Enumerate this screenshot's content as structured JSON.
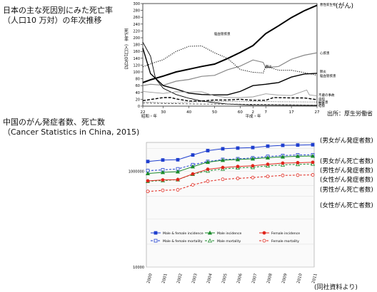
{
  "headings": {
    "japan_title_line1": "日本の主な死因別にみた死亡率",
    "japan_title_line2": "（人口10 万対）の年次推移",
    "japan_source": "出所：厚生労働省",
    "china_title_line1": "中国のがん発症者数、死亡数",
    "china_title_line2": "（Cancer Statistics in China, 2015)",
    "footer_note": "(同社資料より)"
  },
  "chart_data": [
    {
      "type": "line",
      "title": "日本の主な死因別にみた死亡率（人口10 万対）の年次推移",
      "ylabel": "死亡率（人口10万対）",
      "ylim": [
        0,
        300
      ],
      "y_ticks": [
        0,
        20,
        40,
        60,
        80,
        100,
        120,
        140,
        160,
        180,
        200,
        220,
        240,
        260,
        280,
        300
      ],
      "x_tick_labels": [
        "22",
        "30",
        "40",
        "50",
        "60",
        "2",
        "7",
        "17",
        "27"
      ],
      "x_era_labels": [
        "昭和・年",
        "平成・年"
      ],
      "xlim": [
        1947,
        2015
      ],
      "grid": false,
      "series": [
        {
          "name": "悪性新生物",
          "style": "solid-thick",
          "points": [
            [
              1947,
              69
            ],
            [
              1950,
              77
            ],
            [
              1955,
              88
            ],
            [
              1960,
              100
            ],
            [
              1965,
              108
            ],
            [
              1970,
              116
            ],
            [
              1975,
              123
            ],
            [
              1980,
              139
            ],
            [
              1985,
              157
            ],
            [
              1990,
              177
            ],
            [
              1995,
              212
            ],
            [
              2000,
              235
            ],
            [
              2005,
              259
            ],
            [
              2010,
              279
            ],
            [
              2015,
              295
            ]
          ]
        },
        {
          "name": "心疾患",
          "style": "solid-gray",
          "points": [
            [
              1947,
              60
            ],
            [
              1950,
              64
            ],
            [
              1955,
              61
            ],
            [
              1960,
              73
            ],
            [
              1965,
              78
            ],
            [
              1970,
              87
            ],
            [
              1975,
              90
            ],
            [
              1980,
              106
            ],
            [
              1985,
              117
            ],
            [
              1990,
              135
            ],
            [
              1994,
              128
            ],
            [
              1995,
              112
            ],
            [
              2000,
              116
            ],
            [
              2005,
              137
            ],
            [
              2010,
              149
            ],
            [
              2015,
              156
            ]
          ]
        },
        {
          "name": "脳血管疾患",
          "style": "dotted",
          "points": [
            [
              1947,
              115
            ],
            [
              1951,
              126
            ],
            [
              1955,
              136
            ],
            [
              1960,
              160
            ],
            [
              1965,
              175
            ],
            [
              1970,
              176
            ],
            [
              1975,
              156
            ],
            [
              1980,
              140
            ],
            [
              1985,
              107
            ],
            [
              1990,
              99
            ],
            [
              1994,
              97
            ],
            [
              1995,
              117
            ],
            [
              2000,
              105
            ],
            [
              2005,
              105
            ],
            [
              2010,
              98
            ],
            [
              2015,
              90
            ]
          ]
        },
        {
          "name": "肺炎",
          "style": "solid-black",
          "points": [
            [
              1947,
              170
            ],
            [
              1950,
              95
            ],
            [
              1955,
              60
            ],
            [
              1960,
              50
            ],
            [
              1965,
              38
            ],
            [
              1970,
              34
            ],
            [
              1975,
              33
            ],
            [
              1980,
              33
            ],
            [
              1985,
              43
            ],
            [
              1990,
              60
            ],
            [
              1995,
              64
            ],
            [
              2000,
              69
            ],
            [
              2005,
              85
            ],
            [
              2010,
              94
            ],
            [
              2015,
              96
            ]
          ]
        },
        {
          "name": "結核",
          "style": "solid-black-thin",
          "points": [
            [
              1947,
              187
            ],
            [
              1950,
              146
            ],
            [
              1952,
              80
            ],
            [
              1955,
              52
            ],
            [
              1960,
              34
            ],
            [
              1965,
              23
            ],
            [
              1970,
              15
            ],
            [
              1975,
              10
            ],
            [
              1980,
              6
            ],
            [
              1990,
              3
            ],
            [
              2015,
              2
            ]
          ]
        },
        {
          "name": "不慮の事故",
          "style": "solid-gray-thin",
          "points": [
            [
              1947,
              43
            ],
            [
              1955,
              37
            ],
            [
              1960,
              42
            ],
            [
              1965,
              41
            ],
            [
              1970,
              42
            ],
            [
              1975,
              30
            ],
            [
              1980,
              25
            ],
            [
              1985,
              25
            ],
            [
              1990,
              27
            ],
            [
              1995,
              36
            ],
            [
              2000,
              32
            ],
            [
              2005,
              31
            ],
            [
              2011,
              47
            ],
            [
              2012,
              33
            ],
            [
              2015,
              30
            ]
          ]
        },
        {
          "name": "自殺",
          "style": "dashed",
          "points": [
            [
              1947,
              16
            ],
            [
              1955,
              25
            ],
            [
              1958,
              25
            ],
            [
              1960,
              21
            ],
            [
              1965,
              15
            ],
            [
              1970,
              15
            ],
            [
              1975,
              18
            ],
            [
              1980,
              18
            ],
            [
              1985,
              20
            ],
            [
              1990,
              17
            ],
            [
              1995,
              17
            ],
            [
              1998,
              25
            ],
            [
              2005,
              24
            ],
            [
              2010,
              24
            ],
            [
              2015,
              19
            ]
          ]
        },
        {
          "name": "肝疾患",
          "style": "dotted-thin",
          "points": [
            [
              1947,
              12
            ],
            [
              1955,
              10
            ],
            [
              1960,
              10
            ],
            [
              1965,
              12
            ],
            [
              1970,
              13
            ],
            [
              1975,
              14
            ],
            [
              1980,
              14
            ],
            [
              1990,
              14
            ],
            [
              2000,
              13
            ],
            [
              2015,
              12
            ]
          ]
        },
        {
          "name": "腎炎",
          "style": "dashed-thin",
          "points": [
            [
              1947,
              9
            ],
            [
              1955,
              8
            ],
            [
              1960,
              7
            ],
            [
              1970,
              6
            ],
            [
              1980,
              6
            ],
            [
              1990,
              5
            ],
            [
              2015,
              3
            ]
          ]
        }
      ],
      "annotations": [
        "(がん)"
      ]
    },
    {
      "type": "line",
      "title": "中国のがん発症者数、死亡数（Cancer Statistics in China, 2015)",
      "x": [
        "2000",
        "2001",
        "2002",
        "2003",
        "2004",
        "2005",
        "2006",
        "2007",
        "2008",
        "2009",
        "2010",
        "2011"
      ],
      "y_scale": "log",
      "ylim": [
        10000,
        4000000
      ],
      "y_tick_labels": [
        "10000",
        "1000000"
      ],
      "grid": "horizontal",
      "legend_position": "bottom",
      "series": [
        {
          "name": "Male & female incidence",
          "color": "#1f3fcf",
          "marker": "square-filled",
          "line": "solid",
          "values": [
            1600000,
            1720000,
            1740000,
            2190000,
            2700000,
            2950000,
            3050000,
            3130000,
            3350000,
            3480000,
            3530000,
            3580000
          ],
          "label": "(男女がん発症者数)"
        },
        {
          "name": "Male & female mortality",
          "color": "#1f3fcf",
          "marker": "square-open",
          "line": "dashed",
          "values": [
            1030000,
            1070000,
            1120000,
            1370000,
            1600000,
            1760000,
            1820000,
            1900000,
            2040000,
            2130000,
            2190000,
            2200000
          ],
          "label": "(男女がん死亡者数)"
        },
        {
          "name": "Male incidence",
          "color": "#1a8a2a",
          "marker": "triangle-filled",
          "line": "solid",
          "values": [
            900000,
            950000,
            980000,
            1250000,
            1550000,
            1700000,
            1760000,
            1820000,
            1920000,
            2000000,
            2060000,
            2080000
          ],
          "label": "(男性がん発症者数)"
        },
        {
          "name": "Male mortality",
          "color": "#1a8a2a",
          "marker": "triangle-open",
          "line": "dashed",
          "values": [
            620000,
            640000,
            670000,
            870000,
            1020000,
            1120000,
            1180000,
            1210000,
            1300000,
            1360000,
            1400000,
            1420000
          ],
          "label": "(男性がん死亡者数)"
        },
        {
          "name": "Female incidence",
          "color": "#e0261c",
          "marker": "circle-filled",
          "line": "solid",
          "values": [
            630000,
            660000,
            670000,
            880000,
            1100000,
            1200000,
            1260000,
            1300000,
            1400000,
            1480000,
            1510000,
            1540000
          ],
          "label": "(女性がん発症者数)"
        },
        {
          "name": "Female mortality",
          "color": "#e0261c",
          "marker": "circle-open",
          "line": "dashed",
          "values": [
            380000,
            400000,
            410000,
            520000,
            620000,
            680000,
            710000,
            740000,
            780000,
            820000,
            830000,
            840000
          ],
          "label": "(女性がん死亡者数)"
        }
      ]
    }
  ]
}
